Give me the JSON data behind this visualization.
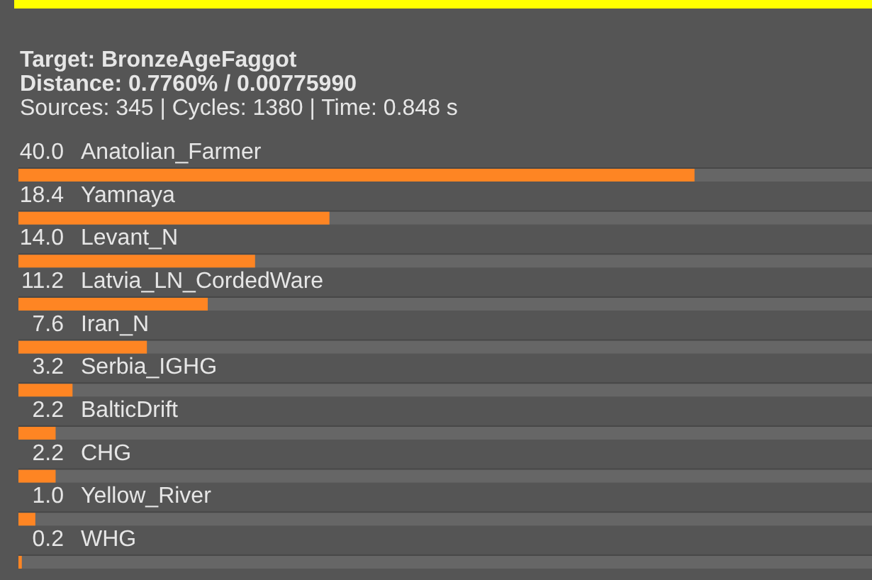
{
  "chart_data": {
    "type": "bar",
    "orientation": "horizontal",
    "title": "Target: BronzeAgeFaggot",
    "subtitle": "Distance: 0.7760% / 0.00775990",
    "annotations": [
      "Sources: 345 | Cycles: 1380 | Time: 0.848 s"
    ],
    "categories": [
      "Anatolian_Farmer",
      "Yamnaya",
      "Levant_N",
      "Latvia_LN_CordedWare",
      "Iran_N",
      "Serbia_IGHG",
      "BalticDrift",
      "CHG",
      "Yellow_River",
      "WHG"
    ],
    "values": [
      40.0,
      18.4,
      14.0,
      11.2,
      7.6,
      3.2,
      2.2,
      2.2,
      1.0,
      0.2
    ],
    "value_labels": [
      "40.0",
      "18.4",
      "14.0",
      "11.2",
      "7.6",
      "3.2",
      "2.2",
      "2.2",
      "1.0",
      "0.2"
    ],
    "color": "#fe8523",
    "xlim": [
      0,
      50.5
    ],
    "tick_labels": "y"
  }
}
